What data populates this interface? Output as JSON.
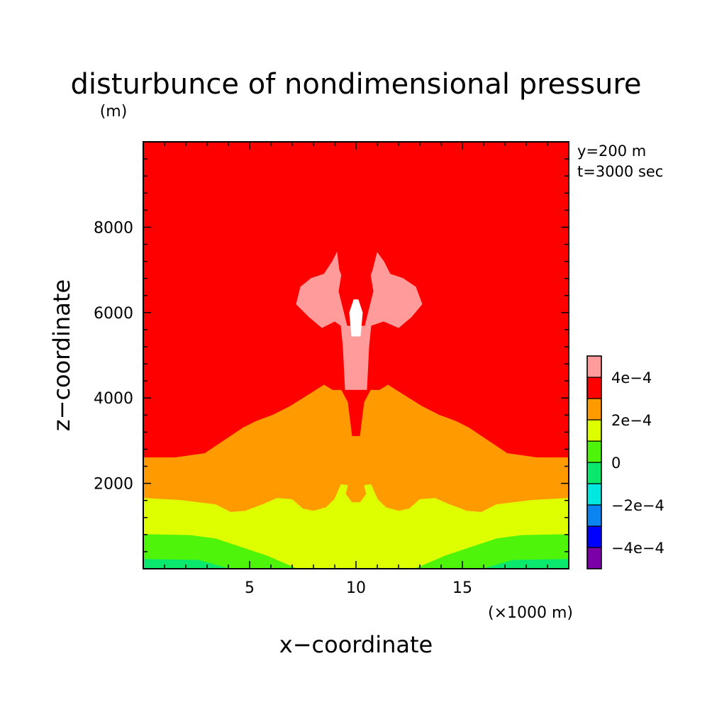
{
  "chart_data": {
    "type": "heatmap",
    "subtype": "filled-contour",
    "title": "disturbunce of nondimensional pressure",
    "y_unit": "(m)",
    "xlabel": "x−coordinate",
    "ylabel": "z−coordinate",
    "x_unit": "(×1000 m)",
    "annotations": [
      "y=200 m",
      "t=3000 sec"
    ],
    "xlim": [
      0,
      20
    ],
    "ylim": [
      0,
      10000
    ],
    "x_ticks": [
      5,
      10,
      15
    ],
    "x_tick_labels": [
      "5",
      "10",
      "15"
    ],
    "y_ticks": [
      2000,
      4000,
      6000,
      8000
    ],
    "y_tick_labels": [
      "2000",
      "4000",
      "6000",
      "8000"
    ],
    "x_minor_step": 1,
    "y_minor_step": 400,
    "grid": false,
    "colorbar": {
      "placement": "right",
      "levels": [
        {
          "range": [
            -0.0005,
            -0.0004
          ],
          "color": "#7B00A8"
        },
        {
          "range": [
            -0.0004,
            -0.0003
          ],
          "color": "#0000FF"
        },
        {
          "range": [
            -0.0003,
            -0.0002
          ],
          "color": "#0A84F0"
        },
        {
          "range": [
            -0.0002,
            -0.0001
          ],
          "color": "#00E8E0"
        },
        {
          "range": [
            -0.0001,
            0
          ],
          "color": "#0AE86E"
        },
        {
          "range": [
            0,
            0.0001
          ],
          "color": "#4EF50A"
        },
        {
          "range": [
            0.0001,
            0.0002
          ],
          "color": "#DDFF00"
        },
        {
          "range": [
            0.0002,
            0.0003
          ],
          "color": "#FF9A00"
        },
        {
          "range": [
            0.0003,
            0.0004
          ],
          "color": "#FF0000"
        },
        {
          "range": [
            0.0004,
            0.0005
          ],
          "color": "#FF9B9B"
        }
      ],
      "tick_values": [
        0.0004,
        0.0002,
        0,
        -0.0002,
        -0.0004
      ],
      "tick_labels": [
        "4e−4",
        "2e−4",
        "0",
        "−2e−4",
        "−4e−4"
      ]
    },
    "regions": [
      {
        "level": "3e-4 to 4e-4",
        "color": "#FF0000",
        "outline": [
          [
            0,
            10000
          ],
          [
            20,
            10000
          ],
          [
            20,
            0
          ],
          [
            0,
            0
          ]
        ]
      },
      {
        "level": "2e-4 to 3e-4",
        "color": "#FF9A00",
        "outline": [
          [
            0,
            2600
          ],
          [
            1.5,
            2600
          ],
          [
            2.9,
            2700
          ],
          [
            3.8,
            3000
          ],
          [
            4.7,
            3300
          ],
          [
            5.3,
            3450
          ],
          [
            6.1,
            3600
          ],
          [
            6.9,
            3800
          ],
          [
            7.7,
            4050
          ],
          [
            8.5,
            4300
          ],
          [
            8.9,
            4180
          ],
          [
            9.3,
            4180
          ],
          [
            9.6,
            3900
          ],
          [
            9.8,
            3100
          ],
          [
            10.2,
            3100
          ],
          [
            10.4,
            3900
          ],
          [
            10.7,
            4180
          ],
          [
            11.1,
            4180
          ],
          [
            11.5,
            4300
          ],
          [
            12.3,
            4050
          ],
          [
            13.1,
            3800
          ],
          [
            13.9,
            3600
          ],
          [
            14.7,
            3450
          ],
          [
            15.3,
            3300
          ],
          [
            16.2,
            3000
          ],
          [
            17.1,
            2700
          ],
          [
            18.5,
            2600
          ],
          [
            20,
            2600
          ],
          [
            20,
            0
          ],
          [
            0,
            0
          ]
        ]
      },
      {
        "level": "1e-4 to 2e-4",
        "color": "#DDFF00",
        "outline": [
          [
            0,
            1650
          ],
          [
            1.8,
            1600
          ],
          [
            3.4,
            1500
          ],
          [
            4.1,
            1320
          ],
          [
            4.8,
            1350
          ],
          [
            5.6,
            1500
          ],
          [
            6.3,
            1650
          ],
          [
            7.0,
            1620
          ],
          [
            7.5,
            1400
          ],
          [
            8.0,
            1350
          ],
          [
            8.6,
            1430
          ],
          [
            9.0,
            1630
          ],
          [
            9.3,
            1970
          ],
          [
            9.6,
            1950
          ],
          [
            9.5,
            1750
          ],
          [
            9.8,
            1550
          ],
          [
            10.2,
            1550
          ],
          [
            10.5,
            1750
          ],
          [
            10.4,
            1950
          ],
          [
            10.7,
            1970
          ],
          [
            11.0,
            1630
          ],
          [
            11.4,
            1430
          ],
          [
            12.0,
            1350
          ],
          [
            12.5,
            1400
          ],
          [
            13.0,
            1620
          ],
          [
            13.7,
            1650
          ],
          [
            14.4,
            1500
          ],
          [
            15.2,
            1350
          ],
          [
            15.9,
            1320
          ],
          [
            16.6,
            1500
          ],
          [
            18.2,
            1600
          ],
          [
            20,
            1650
          ],
          [
            20,
            0
          ],
          [
            0,
            0
          ]
        ]
      },
      {
        "level": "0 to 1e-4",
        "color": "#4EF50A",
        "outline": [
          [
            0,
            800
          ],
          [
            2.2,
            780
          ],
          [
            3.4,
            700
          ],
          [
            4.6,
            500
          ],
          [
            5.8,
            300
          ],
          [
            7.2,
            0
          ],
          [
            12.8,
            0
          ],
          [
            14.2,
            300
          ],
          [
            15.4,
            500
          ],
          [
            16.6,
            700
          ],
          [
            17.8,
            780
          ],
          [
            20,
            800
          ],
          [
            20,
            0
          ],
          [
            0,
            0
          ]
        ]
      },
      {
        "level": "-1e-4 to 0",
        "color": "#0AE86E",
        "outline": [
          [
            0,
            220
          ],
          [
            2.6,
            200
          ],
          [
            4.0,
            0
          ],
          [
            0,
            0
          ]
        ]
      },
      {
        "level": "-1e-4 to 0",
        "color": "#0AE86E",
        "outline": [
          [
            16.0,
            0
          ],
          [
            17.4,
            200
          ],
          [
            20,
            220
          ],
          [
            20,
            0
          ]
        ]
      },
      {
        "level": "4e-4 to 5e-4",
        "color": "#FF9B9B",
        "outline": [
          [
            9.5,
            4200
          ],
          [
            9.4,
            5200
          ],
          [
            9.3,
            5700
          ],
          [
            9.0,
            5800
          ],
          [
            8.4,
            5650
          ],
          [
            7.8,
            5900
          ],
          [
            7.2,
            6200
          ],
          [
            7.4,
            6600
          ],
          [
            7.9,
            6800
          ],
          [
            8.5,
            6900
          ],
          [
            8.9,
            7200
          ],
          [
            9.1,
            7400
          ],
          [
            9.2,
            7000
          ],
          [
            9.5,
            6600
          ],
          [
            10.0,
            6550
          ],
          [
            10.5,
            6600
          ],
          [
            10.8,
            7000
          ],
          [
            11.0,
            7400
          ],
          [
            11.3,
            7200
          ],
          [
            11.6,
            6900
          ],
          [
            12.2,
            6800
          ],
          [
            12.8,
            6600
          ],
          [
            13.1,
            6200
          ],
          [
            12.6,
            5900
          ],
          [
            12.0,
            5650
          ],
          [
            11.3,
            5800
          ],
          [
            10.7,
            5700
          ],
          [
            10.6,
            5200
          ],
          [
            10.5,
            4200
          ]
        ]
      },
      {
        "level": "3e-4 to 4e-4",
        "color": "#FF0000",
        "outline": [
          [
            9.6,
            5700
          ],
          [
            9.2,
            6500
          ],
          [
            9.4,
            7100
          ],
          [
            9.6,
            6600
          ],
          [
            10.0,
            6550
          ],
          [
            10.4,
            6600
          ],
          [
            10.6,
            7100
          ],
          [
            10.8,
            6500
          ],
          [
            10.4,
            5700
          ]
        ]
      },
      {
        "level": "above 5e-4",
        "color": "#FFFFFF",
        "outline": [
          [
            9.8,
            5450
          ],
          [
            9.7,
            6000
          ],
          [
            9.9,
            6300
          ],
          [
            10.1,
            6300
          ],
          [
            10.3,
            6000
          ],
          [
            10.2,
            5450
          ]
        ]
      }
    ]
  }
}
